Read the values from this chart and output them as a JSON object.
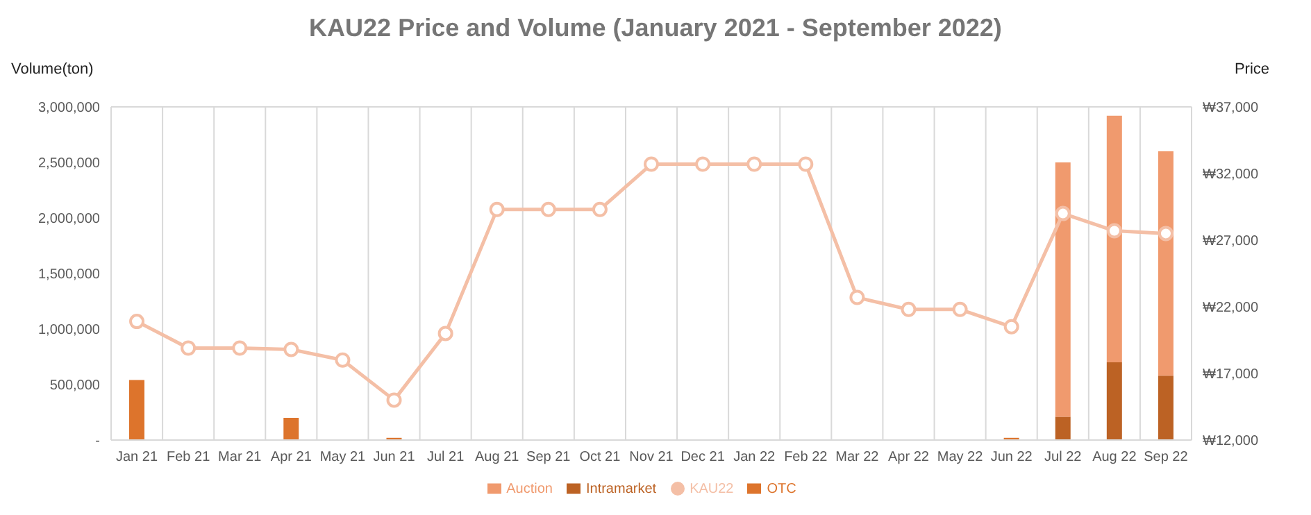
{
  "chart_data": {
    "type": "bar",
    "title": "KAU22 Price and Volume (January 2021 - September 2022)",
    "ylabel": "Volume(ton)",
    "y2label": "Price",
    "categories": [
      "Jan 21",
      "Feb 21",
      "Mar 21",
      "Apr 21",
      "May 21",
      "Jun 21",
      "Jul 21",
      "Aug 21",
      "Sep 21",
      "Oct 21",
      "Nov 21",
      "Dec 21",
      "Jan 22",
      "Feb 22",
      "Mar 22",
      "Apr 22",
      "May 22",
      "Jun 22",
      "Jul 22",
      "Aug 22",
      "Sep 22"
    ],
    "stacked": true,
    "series": [
      {
        "name": "Intramarket",
        "color": "#bc6224",
        "values": [
          null,
          null,
          null,
          null,
          null,
          null,
          null,
          null,
          null,
          null,
          null,
          null,
          null,
          null,
          null,
          null,
          null,
          null,
          210000,
          700000,
          580000
        ]
      },
      {
        "name": "OTC",
        "color": "#dd742c",
        "values": [
          540000,
          null,
          null,
          200000,
          null,
          20000,
          null,
          null,
          null,
          null,
          null,
          null,
          null,
          null,
          null,
          null,
          null,
          20000,
          null,
          null,
          null
        ]
      },
      {
        "name": "Auction",
        "color": "#f09a6e",
        "values": [
          null,
          null,
          null,
          null,
          null,
          null,
          null,
          null,
          null,
          null,
          null,
          null,
          null,
          null,
          null,
          null,
          null,
          null,
          2290000,
          2220000,
          2020000
        ]
      },
      {
        "name": "KAU22",
        "type": "line",
        "axis": "y2",
        "color": "#f4bfa6",
        "marker": "circle",
        "values": [
          20900,
          18900,
          18900,
          18800,
          18000,
          15000,
          20000,
          29300,
          29300,
          29300,
          32700,
          32700,
          32700,
          32700,
          22700,
          21800,
          21800,
          20500,
          29000,
          27700,
          27500
        ]
      }
    ],
    "ylim": [
      0,
      3000000
    ],
    "yticks": [
      {
        "value": 0,
        "label": "-"
      },
      {
        "value": 500000,
        "label": "500,000"
      },
      {
        "value": 1000000,
        "label": "1,000,000"
      },
      {
        "value": 1500000,
        "label": "1,500,000"
      },
      {
        "value": 2000000,
        "label": "2,000,000"
      },
      {
        "value": 2500000,
        "label": "2,500,000"
      },
      {
        "value": 3000000,
        "label": "3,000,000"
      }
    ],
    "y2lim": [
      12000,
      37000
    ],
    "y2ticks": [
      {
        "value": 12000,
        "label": "₩12,000"
      },
      {
        "value": 17000,
        "label": "₩17,000"
      },
      {
        "value": 22000,
        "label": "₩22,000"
      },
      {
        "value": 27000,
        "label": "₩27,000"
      },
      {
        "value": 32000,
        "label": "₩32,000"
      },
      {
        "value": 37000,
        "label": "₩37,000"
      }
    ],
    "grid": true,
    "legend": "bottom"
  }
}
